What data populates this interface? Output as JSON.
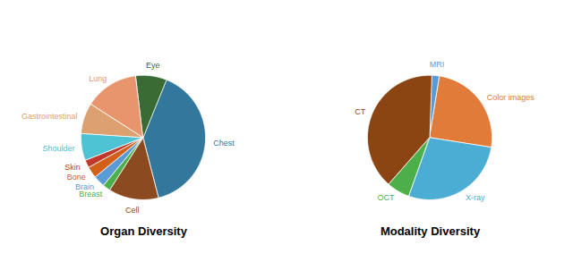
{
  "chart_data": [
    {
      "type": "pie",
      "title": "Organ Diversity",
      "categories": [
        "Chest",
        "Cell",
        "Breast",
        "Brain",
        "Bone",
        "Skin",
        "Shoulder",
        "Gastrointestinal",
        "Lung",
        "Eye"
      ],
      "values": [
        40,
        13,
        2,
        3,
        3,
        2,
        7,
        8,
        14,
        8
      ],
      "colors": [
        "#31789c",
        "#8b4a20",
        "#4daf4a",
        "#5b9bd5",
        "#d2601a",
        "#c0392b",
        "#4dc3d4",
        "#dda070",
        "#e8956d",
        "#3a6b35"
      ]
    },
    {
      "type": "pie",
      "title": "Modality Diversity",
      "categories": [
        "MRI",
        "Color images",
        "X-ray",
        "OCT",
        "CT"
      ],
      "values": [
        2,
        25,
        28,
        6,
        39
      ],
      "colors": [
        "#5b9bd5",
        "#e07b39",
        "#4badd4",
        "#4daf4a",
        "#8b4513"
      ]
    }
  ]
}
